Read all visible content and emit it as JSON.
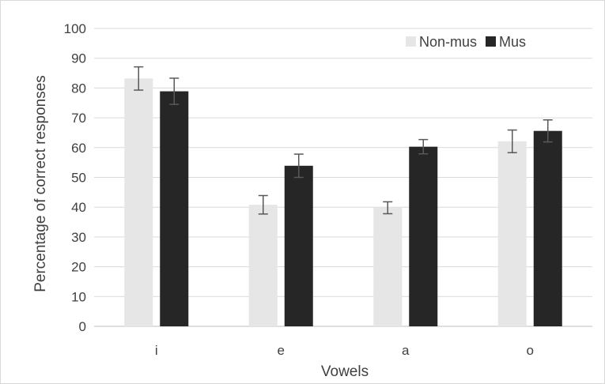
{
  "chart_data": {
    "type": "bar",
    "title": "",
    "xlabel": "Vowels",
    "ylabel": "Percentage of correct responses",
    "categories": [
      "i",
      "e",
      "a",
      "o"
    ],
    "ylim": [
      0,
      100
    ],
    "yticks": [
      0,
      10,
      20,
      30,
      40,
      50,
      60,
      70,
      80,
      90,
      100
    ],
    "grid": true,
    "legend_position": "top-right",
    "error_bars": true,
    "series": [
      {
        "name": "Non-mus",
        "color": "#e6e6e6",
        "values": [
          83.2,
          40.8,
          39.8,
          62.1
        ],
        "errors": [
          3.9,
          3.1,
          2.0,
          3.8
        ]
      },
      {
        "name": "Mus",
        "color": "#262626",
        "values": [
          78.9,
          53.9,
          60.3,
          65.6
        ],
        "errors": [
          4.4,
          3.9,
          2.4,
          3.7
        ]
      }
    ]
  }
}
